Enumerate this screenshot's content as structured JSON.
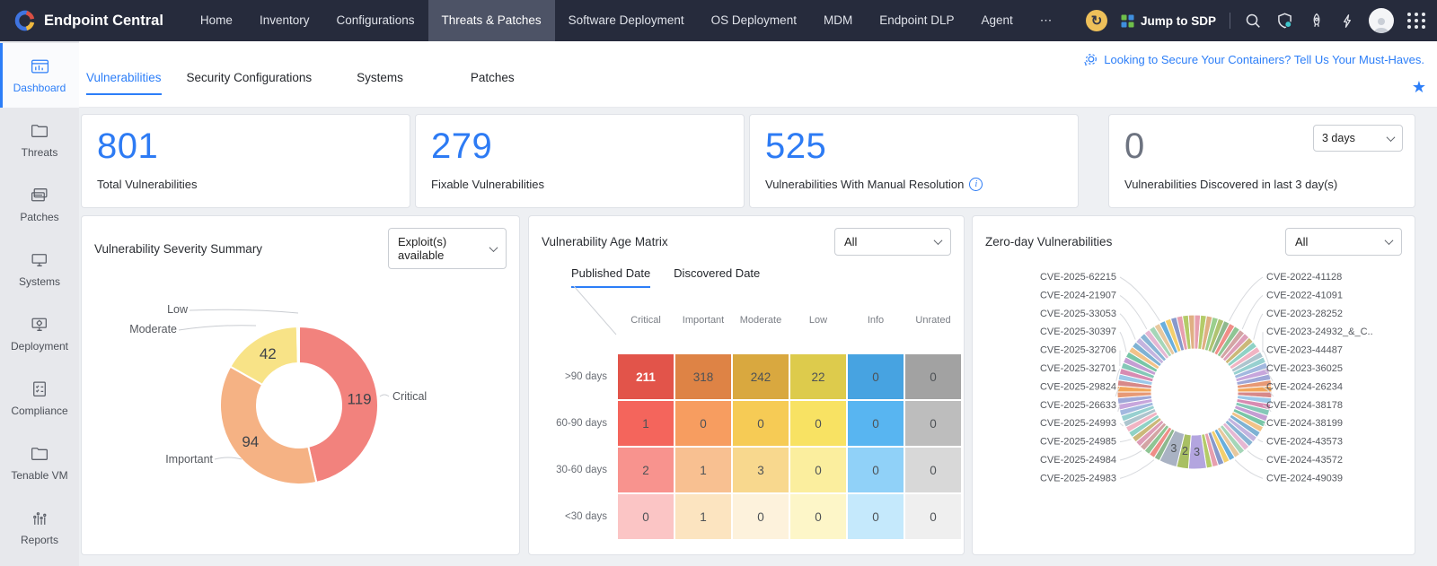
{
  "colors": {
    "accent": "#2c7ef8",
    "nav_bg": "#262b3c",
    "nav_active_bg": "#4d5366",
    "refresh_yellow": "#eec05a",
    "teal_dot": "#3fc6cc"
  },
  "topnav": {
    "brand": "Endpoint Central",
    "items": [
      {
        "label": "Home"
      },
      {
        "label": "Inventory"
      },
      {
        "label": "Configurations"
      },
      {
        "label": "Threats & Patches",
        "active": true
      },
      {
        "label": "Software Deployment"
      },
      {
        "label": "OS Deployment"
      },
      {
        "label": "MDM"
      },
      {
        "label": "Endpoint DLP"
      },
      {
        "label": "Agent"
      },
      {
        "label": "⋯"
      }
    ],
    "jump_to_sdp": "Jump to SDP"
  },
  "sidebar": {
    "items": [
      {
        "label": "Dashboard",
        "icon": "dashboard-icon",
        "active": true
      },
      {
        "label": "Threats",
        "icon": "threats-icon"
      },
      {
        "label": "Patches",
        "icon": "patches-icon"
      },
      {
        "label": "Systems",
        "icon": "systems-icon"
      },
      {
        "label": "Deployment",
        "icon": "deployment-icon"
      },
      {
        "label": "Compliance",
        "icon": "compliance-icon"
      },
      {
        "label": "Tenable VM",
        "icon": "tenable-vm-icon"
      },
      {
        "label": "Reports",
        "icon": "reports-icon"
      }
    ]
  },
  "header": {
    "tabs": [
      {
        "label": "Vulnerabilities",
        "active": true
      },
      {
        "label": "Security Configurations"
      },
      {
        "label": "Systems"
      },
      {
        "label": "Patches"
      }
    ],
    "announcement": "Looking to Secure Your Containers? Tell Us Your Must-Haves."
  },
  "stat_cards": [
    {
      "value": "801",
      "label": "Total Vulnerabilities"
    },
    {
      "value": "279",
      "label": "Fixable Vulnerabilities"
    },
    {
      "value": "525",
      "label": "Vulnerabilities With Manual Resolution",
      "info": true
    },
    {
      "value": "0",
      "label": "Vulnerabilities Discovered in last 3 day(s)",
      "dropdown": "3 days",
      "muted": true
    }
  ],
  "severity_summary": {
    "title": "Vulnerability Severity Summary",
    "filter_value": "Exploit(s) available",
    "chart": {
      "type": "pie",
      "segments": [
        {
          "label": "Critical",
          "value": 119,
          "color": "#f2827d"
        },
        {
          "label": "Important",
          "value": 94,
          "color": "#f5b284"
        },
        {
          "label": "Moderate",
          "value": 42,
          "color": "#f8e387"
        },
        {
          "label": "Low",
          "value": 1,
          "color": "#f5e48b"
        }
      ]
    }
  },
  "age_matrix": {
    "title": "Vulnerability Age Matrix",
    "filter_value": "All",
    "tabs": [
      {
        "label": "Published Date",
        "active": true
      },
      {
        "label": "Discovered Date"
      }
    ],
    "chart": {
      "type": "heatmap",
      "columns": [
        "Critical",
        "Important",
        "Moderate",
        "Low",
        "Info",
        "Unrated"
      ],
      "rows": [
        ">90 days",
        "60-90 days",
        "30-60 days",
        "<30 days"
      ],
      "values": [
        [
          211,
          318,
          242,
          22,
          0,
          0
        ],
        [
          1,
          0,
          0,
          0,
          0,
          0
        ],
        [
          2,
          1,
          3,
          0,
          0,
          0
        ],
        [
          0,
          1,
          0,
          0,
          0,
          0
        ]
      ],
      "cell_colors": [
        [
          "#e2544a",
          "#de8345",
          "#d9a83f",
          "#ddcb4c",
          "#47a3e1",
          "#a2a2a2"
        ],
        [
          "#f4655c",
          "#f79d60",
          "#f6cb55",
          "#f8e263",
          "#58b5f1",
          "#bdbdbd"
        ],
        [
          "#f8938e",
          "#f8c091",
          "#f8d88e",
          "#fbee9e",
          "#90d1f8",
          "#d8d8d8"
        ],
        [
          "#fbc5c5",
          "#fce4c0",
          "#fdf2dc",
          "#fdf6c8",
          "#c5e9fc",
          "#efefef"
        ]
      ]
    }
  },
  "zero_day": {
    "title": "Zero-day Vulnerabilities",
    "filter_value": "All",
    "left_labels": [
      "CVE-2025-62215",
      "CVE-2024-21907",
      "CVE-2025-33053",
      "CVE-2025-30397",
      "CVE-2025-32706",
      "CVE-2025-32701",
      "CVE-2025-29824",
      "CVE-2025-26633",
      "CVE-2025-24993",
      "CVE-2025-24985",
      "CVE-2025-24984",
      "CVE-2025-24983"
    ],
    "right_labels": [
      "CVE-2022-41128",
      "CVE-2022-41091",
      "CVE-2023-28252",
      "CVE-2023-24932_&_C..",
      "CVE-2023-44487",
      "CVE-2023-36025",
      "CVE-2024-26234",
      "CVE-2024-38178",
      "CVE-2024-38199",
      "CVE-2024-43573",
      "CVE-2024-43572",
      "CVE-2024-49039"
    ],
    "chart": {
      "type": "pie",
      "labeled_segments": [
        {
          "value": 3,
          "color": "#b3a5df"
        },
        {
          "value": 2,
          "color": "#a8bf63"
        },
        {
          "value": 3,
          "color": "#a9b2c3"
        }
      ],
      "small_segments_before": 38,
      "small_segments_after": 34,
      "palette": [
        "#e79fae",
        "#a5d6b8",
        "#f2c389",
        "#9cc8e8",
        "#c7a6dc",
        "#8fd2c5",
        "#ef8e88",
        "#b4cb69",
        "#e7c89e",
        "#7eb2d4",
        "#d88bb2",
        "#9fa7d7",
        "#f1b4c3",
        "#8fc594",
        "#dfaf83",
        "#69afdd",
        "#c3b4df",
        "#84c8b7",
        "#e79975",
        "#adc5ce",
        "#d3a4a4",
        "#9bcf8e",
        "#f3cf6e",
        "#89b5d5",
        "#c49ed3",
        "#f1a559",
        "#97d0d0",
        "#dd9eb7",
        "#afc371",
        "#8799cb",
        "#e5b7d3",
        "#78c6a7",
        "#d78989",
        "#a2b8df",
        "#cbb879",
        "#8eb88e"
      ]
    }
  }
}
